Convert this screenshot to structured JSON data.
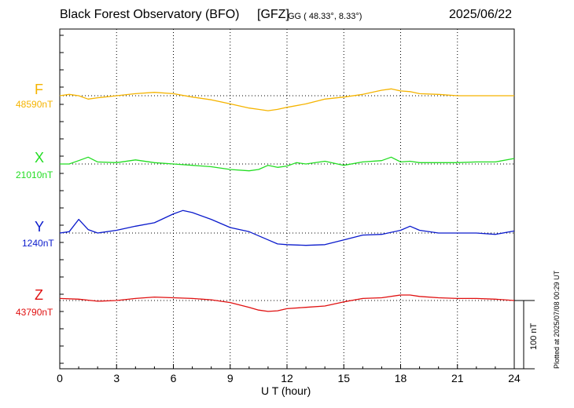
{
  "header": {
    "title": "Black Forest Observatory (BFO)",
    "institute": "[GFZ]",
    "coords": "GG ( 48.33°,   8.33°)",
    "date": "2025/06/22"
  },
  "footer": {
    "plotted": "Plotted at 2025/07/08 00:29 UT",
    "scale_label": "100 nT"
  },
  "chart_data": {
    "type": "line",
    "xlabel": "U T (hour)",
    "xlim": [
      0,
      24
    ],
    "xticks": [
      "0",
      "3",
      "6",
      "9",
      "12",
      "15",
      "18",
      "21",
      "24"
    ],
    "grid": true,
    "scale_bar_nT": 100,
    "series": [
      {
        "name": "F",
        "baseline_label": "48590nT",
        "color": "#f5b400",
        "x": [
          0,
          0.5,
          1,
          1.5,
          2,
          3,
          4,
          5,
          6,
          7,
          8,
          9,
          10,
          10.5,
          11,
          11.5,
          12,
          13,
          14,
          15,
          16,
          17,
          17.5,
          18,
          18.5,
          19,
          20,
          21,
          22,
          23,
          24
        ],
        "values": [
          0,
          2,
          0,
          -5,
          -3,
          0,
          3,
          5,
          3,
          -2,
          -6,
          -12,
          -18,
          -20,
          -22,
          -20,
          -17,
          -12,
          -5,
          -2,
          2,
          8,
          10,
          7,
          6,
          3,
          2,
          0,
          0,
          0,
          0
        ]
      },
      {
        "name": "X",
        "baseline_label": "21010nT",
        "color": "#22dd22",
        "x": [
          0,
          0.5,
          1,
          1.5,
          2,
          3,
          4,
          5,
          6,
          7,
          8,
          9,
          10,
          10.5,
          11,
          11.5,
          12,
          12.5,
          13,
          14,
          15,
          16,
          17,
          17.5,
          18,
          18.5,
          19,
          20,
          21,
          22,
          23,
          24
        ],
        "values": [
          0,
          0,
          5,
          10,
          3,
          2,
          6,
          2,
          0,
          -2,
          -4,
          -8,
          -10,
          -8,
          -2,
          -5,
          -3,
          2,
          0,
          4,
          -2,
          3,
          5,
          10,
          3,
          4,
          2,
          2,
          2,
          3,
          3,
          8
        ]
      },
      {
        "name": "Y",
        "baseline_label": "1240nT",
        "color": "#0a1acc",
        "x": [
          0,
          0.5,
          1,
          1.5,
          2,
          3,
          4,
          5,
          6,
          6.5,
          7,
          8,
          9,
          10,
          11,
          11.5,
          12,
          13,
          14,
          15,
          16,
          17,
          18,
          18.5,
          19,
          20,
          21,
          22,
          23,
          24
        ],
        "values": [
          0,
          2,
          20,
          5,
          0,
          4,
          10,
          15,
          28,
          33,
          30,
          20,
          8,
          2,
          -10,
          -16,
          -17,
          -18,
          -17,
          -10,
          -3,
          -2,
          4,
          10,
          4,
          0,
          0,
          0,
          -2,
          3
        ]
      },
      {
        "name": "Z",
        "baseline_label": "43790nT",
        "color": "#e01010",
        "x": [
          0,
          1,
          2,
          3,
          4,
          5,
          6,
          7,
          8,
          9,
          10,
          10.5,
          11,
          11.5,
          12,
          13,
          14,
          15,
          16,
          17,
          18,
          18.5,
          19,
          20,
          21,
          22,
          23,
          24
        ],
        "values": [
          3,
          2,
          -1,
          0,
          3,
          5,
          4,
          3,
          1,
          -3,
          -10,
          -14,
          -16,
          -15,
          -12,
          -10,
          -8,
          -2,
          3,
          4,
          8,
          8,
          6,
          4,
          3,
          3,
          2,
          0
        ]
      }
    ]
  }
}
